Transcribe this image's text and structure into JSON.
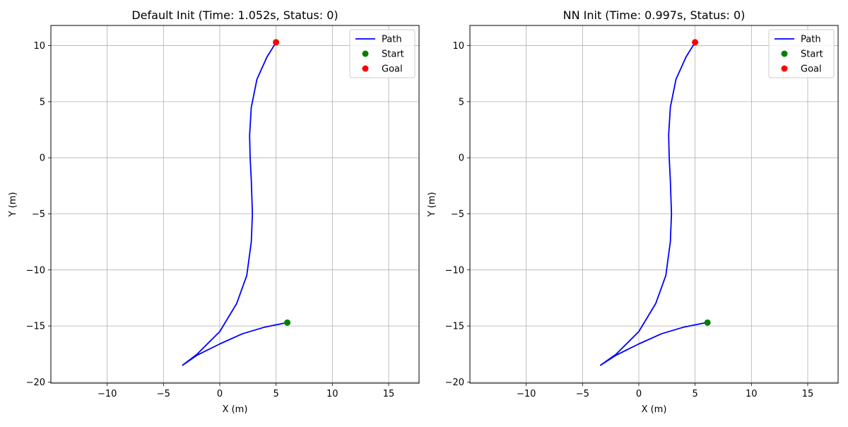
{
  "chart_data": [
    {
      "type": "line",
      "title": "Default Init (Time: 1.052s, Status: 0)",
      "xlabel": "X (m)",
      "ylabel": "Y (m)",
      "xlim": [
        -15,
        17.7
      ],
      "ylim": [
        -20.1,
        11.8
      ],
      "xticks": [
        -10,
        -5,
        0,
        5,
        10,
        15
      ],
      "yticks": [
        -20,
        -15,
        -10,
        -5,
        0,
        5,
        10
      ],
      "grid": true,
      "legend_position": "top-right",
      "series": [
        {
          "name": "Path",
          "style": "line",
          "color": "#0000ff",
          "x": [
            6.0,
            4.0,
            2.0,
            0.0,
            -2.0,
            -3.3,
            -2.0,
            0.0,
            1.5,
            2.4,
            2.8,
            2.9,
            2.8,
            2.7,
            2.65,
            2.8,
            3.3,
            4.2,
            5.0
          ],
          "y": [
            -14.7,
            -15.1,
            -15.7,
            -16.6,
            -17.6,
            -18.5,
            -17.5,
            -15.5,
            -13.0,
            -10.5,
            -7.5,
            -5.0,
            -2.0,
            0.0,
            2.0,
            4.5,
            7.0,
            9.0,
            10.3
          ]
        },
        {
          "name": "Start",
          "style": "marker",
          "color": "#008000",
          "x": [
            6.0
          ],
          "y": [
            -14.7
          ]
        },
        {
          "name": "Goal",
          "style": "marker",
          "color": "#ff0000",
          "x": [
            5.0
          ],
          "y": [
            10.3
          ]
        }
      ]
    },
    {
      "type": "line",
      "title": "NN Init (Time: 0.997s, Status: 0)",
      "xlabel": "X (m)",
      "ylabel": "Y (m)",
      "xlim": [
        -15,
        17.7
      ],
      "ylim": [
        -20.1,
        11.8
      ],
      "xticks": [
        -10,
        -5,
        0,
        5,
        10,
        15
      ],
      "yticks": [
        -20,
        -15,
        -10,
        -5,
        0,
        5,
        10
      ],
      "grid": true,
      "legend_position": "top-right",
      "series": [
        {
          "name": "Path",
          "style": "line",
          "color": "#0000ff",
          "x": [
            6.0,
            4.0,
            2.0,
            0.0,
            -2.0,
            -3.4,
            -2.0,
            0.0,
            1.5,
            2.4,
            2.8,
            2.9,
            2.8,
            2.7,
            2.65,
            2.8,
            3.3,
            4.2,
            5.0
          ],
          "y": [
            -14.7,
            -15.1,
            -15.7,
            -16.6,
            -17.6,
            -18.5,
            -17.5,
            -15.5,
            -13.0,
            -10.5,
            -7.5,
            -5.0,
            -2.0,
            0.0,
            2.0,
            4.5,
            7.0,
            9.0,
            10.3
          ]
        },
        {
          "name": "Start",
          "style": "marker",
          "color": "#008000",
          "x": [
            6.1
          ],
          "y": [
            -14.7
          ]
        },
        {
          "name": "Goal",
          "style": "marker",
          "color": "#ff0000",
          "x": [
            5.0
          ],
          "y": [
            10.3
          ]
        }
      ]
    }
  ]
}
